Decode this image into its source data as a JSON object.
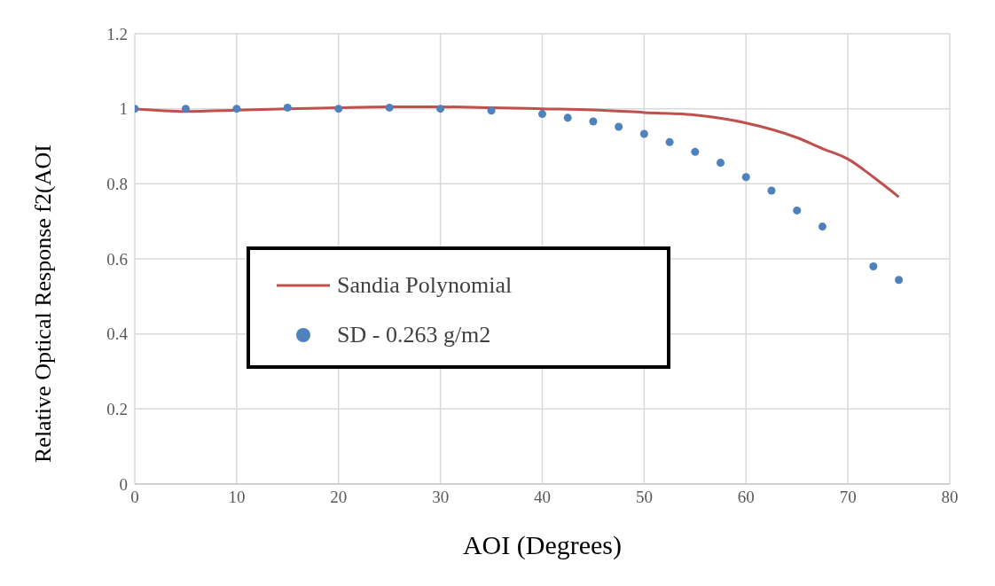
{
  "chart_data": {
    "type": "line",
    "xlabel": "AOI (Degrees)",
    "ylabel": "Relative Optical Response f2(AOI",
    "xlim": [
      0,
      80
    ],
    "xticks": [
      0,
      10,
      20,
      30,
      40,
      50,
      60,
      70,
      80
    ],
    "ylim": [
      0,
      1.2
    ],
    "yticks": [
      0,
      0.2,
      0.4,
      0.6,
      0.8,
      1,
      1.2
    ],
    "grid": true,
    "legend": "left",
    "series": [
      {
        "name": "Sandia Polynomial",
        "marker": "none",
        "line_style": "solid",
        "color": "#c0504d",
        "x": [
          0,
          5,
          10,
          15,
          20,
          25,
          30,
          35,
          40,
          45,
          50,
          55,
          60,
          65,
          67.5,
          70,
          72.5,
          75
        ],
        "values": [
          1.0,
          0.993,
          0.996,
          1.0,
          1.003,
          1.005,
          1.005,
          1.003,
          1.0,
          0.997,
          0.99,
          0.983,
          0.962,
          0.923,
          0.894,
          0.866,
          0.818,
          0.765
        ]
      },
      {
        "name": "SD - 0.263 g/m2",
        "type": "scatter",
        "marker": "circle",
        "color": "#4f81bd",
        "x": [
          0,
          5,
          10,
          15,
          20,
          25,
          30,
          35,
          40,
          42.5,
          45,
          47.5,
          50,
          52.5,
          55,
          57.5,
          60,
          62.5,
          65,
          67.5,
          72.5,
          75
        ],
        "values": [
          1.0,
          1.0,
          1.0,
          1.003,
          1.0,
          1.003,
          1.0,
          0.995,
          0.986,
          0.976,
          0.966,
          0.952,
          0.933,
          0.911,
          0.885,
          0.856,
          0.818,
          0.782,
          0.729,
          0.686,
          0.58,
          0.544
        ]
      }
    ]
  }
}
